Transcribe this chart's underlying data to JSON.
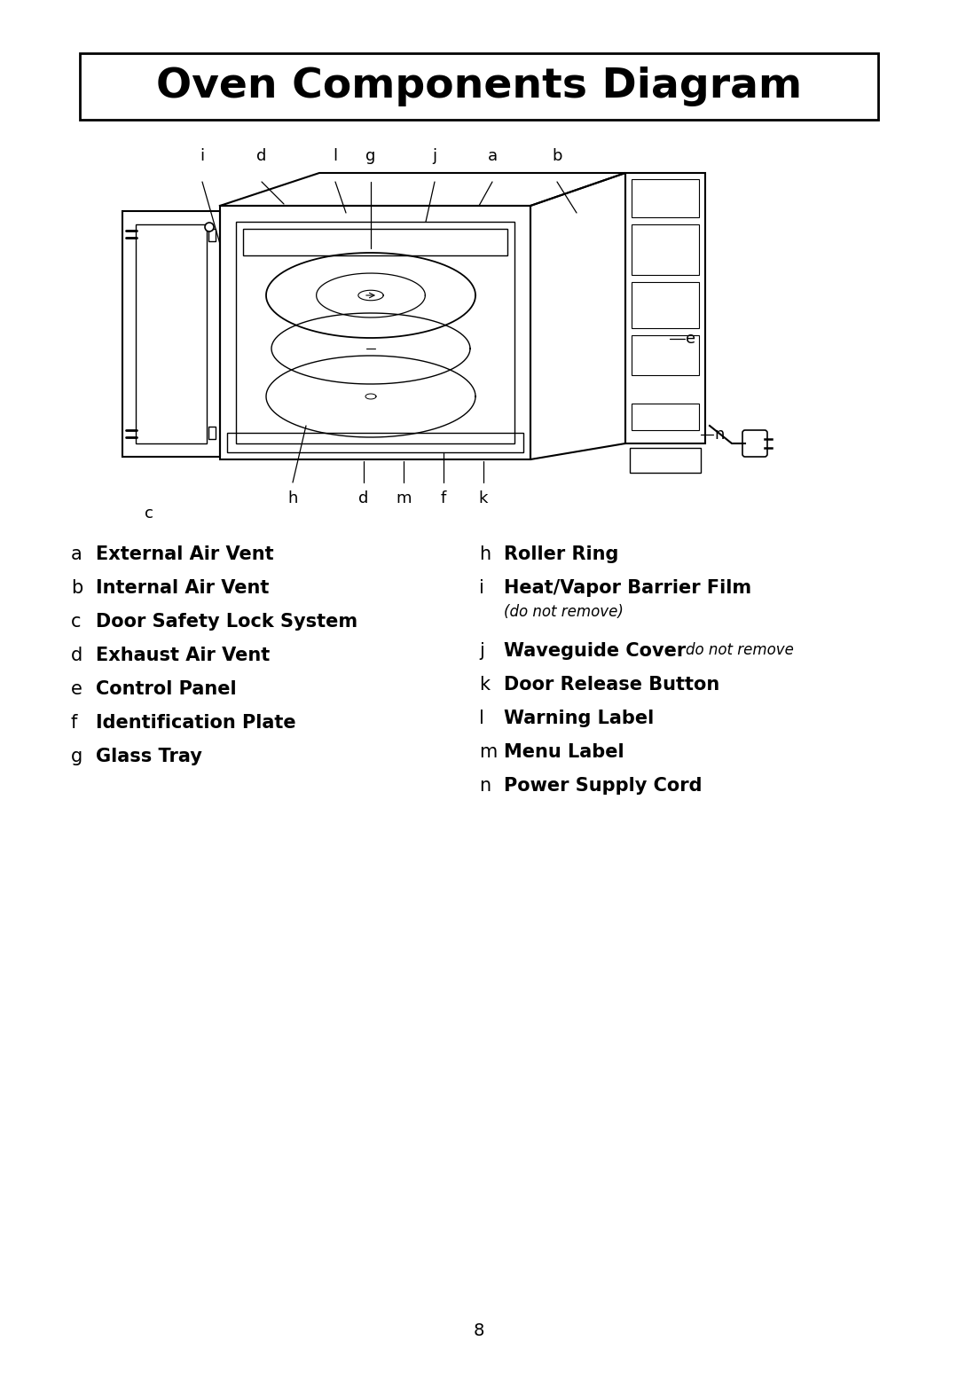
{
  "title": "Oven Components Diagram",
  "background_color": "#ffffff",
  "text_color": "#000000",
  "page_number": "8",
  "left_legend": [
    [
      "a",
      "External Air Vent"
    ],
    [
      "b",
      "Internal Air Vent"
    ],
    [
      "c",
      "Door Safety Lock System"
    ],
    [
      "d",
      "Exhaust Air Vent"
    ],
    [
      "e",
      "Control Panel"
    ],
    [
      "f",
      "Identification Plate"
    ],
    [
      "g",
      "Glass Tray"
    ]
  ],
  "right_legend_h": [
    "h",
    "Roller Ring"
  ],
  "right_legend_i": [
    "i",
    "Heat/Vapor Barrier Film",
    "(do not remove)"
  ],
  "right_legend_j": [
    "j",
    "Waveguide Cover",
    "do not remove"
  ],
  "right_legend_k": [
    "k",
    "Door Release Button"
  ],
  "right_legend_l": [
    "l",
    "Warning Label"
  ],
  "right_legend_m": [
    "m",
    "Menu Label"
  ],
  "right_legend_n": [
    "n",
    "Power Supply Cord"
  ]
}
